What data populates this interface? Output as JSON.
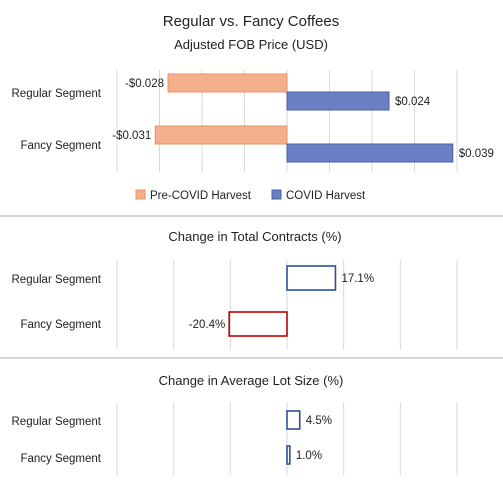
{
  "chart_data": [
    {
      "type": "bar",
      "orientation": "horizontal",
      "title": "Regular vs. Fancy Coffees",
      "subtitle": "Adjusted FOB Price (USD)",
      "categories": [
        "Regular Segment",
        "Fancy Segment"
      ],
      "series": [
        {
          "name": "Pre-COVID Harvest",
          "values": [
            -0.028,
            -0.031
          ],
          "labels": [
            "-$0.028",
            "-$0.031"
          ],
          "color": "#F4B08C",
          "stroke": "#E8906A"
        },
        {
          "name": "COVID Harvest",
          "values": [
            0.024,
            0.039
          ],
          "labels": [
            "$0.024",
            "$0.039"
          ],
          "color": "#6B7FC4",
          "stroke": "#4A5FA8"
        }
      ],
      "xlim": [
        -0.04,
        0.04
      ],
      "grid": true,
      "legend": "bottom"
    },
    {
      "type": "bar",
      "orientation": "horizontal",
      "title": "Change in Total Contracts (%)",
      "categories": [
        "Regular Segment",
        "Fancy Segment"
      ],
      "values": [
        17.1,
        -20.4
      ],
      "labels": [
        "17.1%",
        "-20.4%"
      ],
      "colors": [
        "#2F4F9A",
        "#C00000"
      ],
      "fill": "none",
      "xlim": [
        -60,
        60
      ],
      "grid": true
    },
    {
      "type": "bar",
      "orientation": "horizontal",
      "title": "Change in Average Lot Size (%)",
      "categories": [
        "Regular Segment",
        "Fancy Segment"
      ],
      "values": [
        4.5,
        1.0
      ],
      "labels": [
        "4.5%",
        "1.0%"
      ],
      "colors": [
        "#2F4F9A",
        "#2F4F9A"
      ],
      "fill": "none",
      "xlim": [
        -60,
        60
      ],
      "grid": true
    }
  ]
}
